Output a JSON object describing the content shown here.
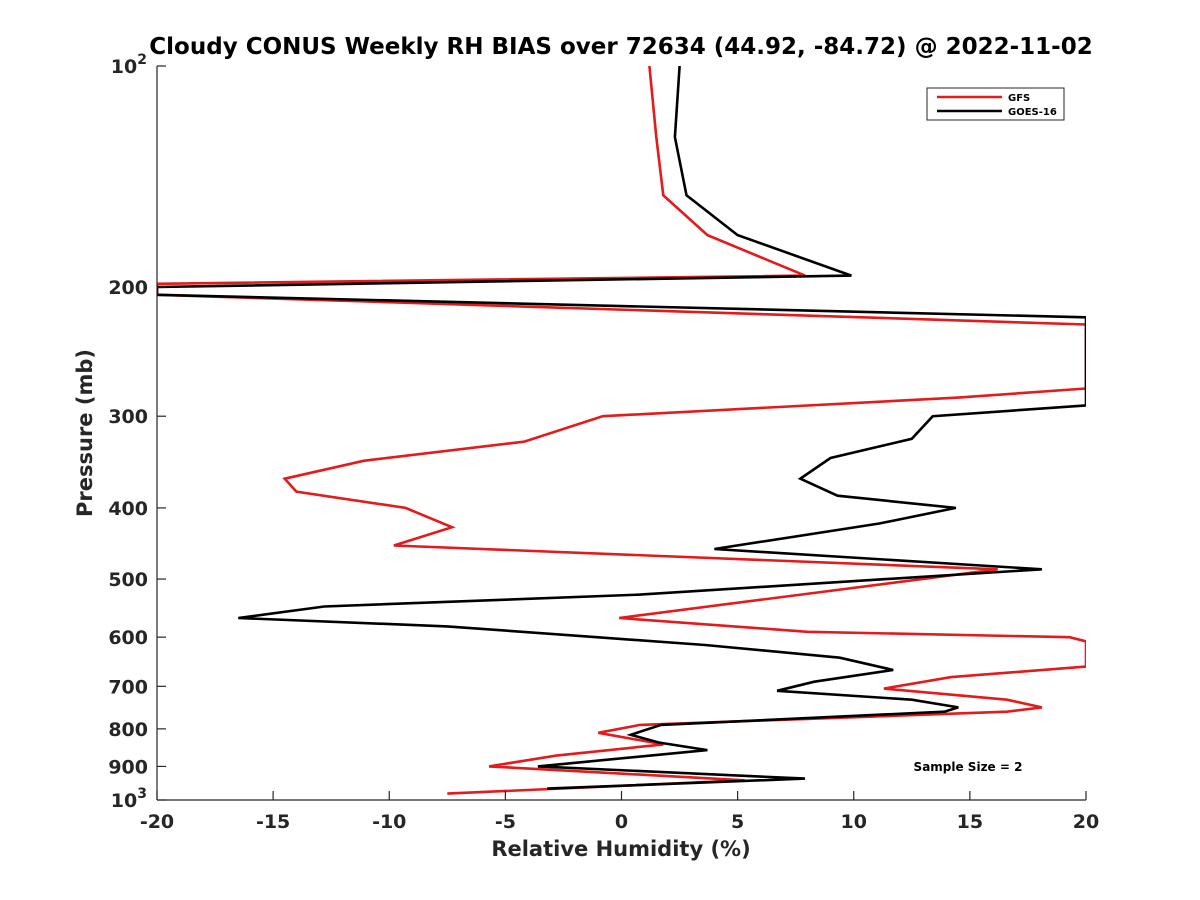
{
  "chart_data": {
    "type": "line",
    "title": "Cloudy CONUS Weekly RH BIAS over 72634 (44.92, -84.72) @ 2022-11-02",
    "xlabel": "Relative Humidity (%)",
    "ylabel": "Pressure (mb)",
    "xlim": [
      -20,
      20
    ],
    "ylim": [
      100,
      1000
    ],
    "yscale": "log",
    "yreversed": true,
    "xticks": [
      "-20",
      "-15",
      "-10",
      "-5",
      "0",
      "5",
      "10",
      "15",
      "20"
    ],
    "yticks": [
      {
        "value": 100,
        "base": "10",
        "exp": "2"
      },
      {
        "value": 200,
        "label": "200"
      },
      {
        "value": 300,
        "label": "300"
      },
      {
        "value": 400,
        "label": "400"
      },
      {
        "value": 500,
        "label": "500"
      },
      {
        "value": 600,
        "label": "600"
      },
      {
        "value": 700,
        "label": "700"
      },
      {
        "value": 800,
        "label": "800"
      },
      {
        "value": 900,
        "label": "900"
      },
      {
        "value": 1000,
        "base": "10",
        "exp": "3"
      }
    ],
    "legend_position": "top-right",
    "grid": false,
    "annotation": "Sample Size = 2",
    "series": [
      {
        "name": "GFS",
        "color": "#e41a1c",
        "points": [
          [
            1.2,
            100
          ],
          [
            1.5,
            125
          ],
          [
            1.8,
            150
          ],
          [
            3.7,
            170
          ],
          [
            7.9,
            193
          ],
          [
            -20,
            198
          ],
          [
            -20,
            205
          ],
          [
            20,
            225
          ],
          [
            20,
            275
          ],
          [
            14.5,
            283
          ],
          [
            -0.8,
            300
          ],
          [
            -4.2,
            325
          ],
          [
            -11.1,
            345
          ],
          [
            -14.5,
            365
          ],
          [
            -14.0,
            380
          ],
          [
            -9.3,
            400
          ],
          [
            -7.3,
            425
          ],
          [
            -9.8,
            450
          ],
          [
            16.2,
            485
          ],
          [
            -0.1,
            565
          ],
          [
            8.0,
            590
          ],
          [
            19.3,
            600
          ],
          [
            20,
            608
          ],
          [
            20,
            658
          ],
          [
            14.2,
            680
          ],
          [
            11.3,
            705
          ],
          [
            16.6,
            730
          ],
          [
            18.1,
            748
          ],
          [
            16.6,
            758
          ],
          [
            0.8,
            790
          ],
          [
            -1.0,
            810
          ],
          [
            1.8,
            840
          ],
          [
            -2.8,
            870
          ],
          [
            -5.7,
            900
          ],
          [
            5.3,
            940
          ],
          [
            -7.5,
            980
          ]
        ]
      },
      {
        "name": "GOES-16",
        "color": "#000000",
        "points": [
          [
            2.5,
            100
          ],
          [
            2.3,
            125
          ],
          [
            2.8,
            150
          ],
          [
            5.0,
            170
          ],
          [
            9.9,
            193
          ],
          [
            -20,
            200
          ],
          [
            -20,
            205
          ],
          [
            20,
            220
          ],
          [
            20,
            290
          ],
          [
            13.4,
            300
          ],
          [
            12.5,
            322
          ],
          [
            9.0,
            342
          ],
          [
            7.7,
            365
          ],
          [
            9.3,
            385
          ],
          [
            14.4,
            400
          ],
          [
            11.1,
            420
          ],
          [
            4.0,
            455
          ],
          [
            18.1,
            485
          ],
          [
            0.8,
            525
          ],
          [
            -12.8,
            545
          ],
          [
            -16.5,
            565
          ],
          [
            -7.5,
            580
          ],
          [
            3.6,
            615
          ],
          [
            9.4,
            640
          ],
          [
            11.7,
            665
          ],
          [
            8.3,
            690
          ],
          [
            6.7,
            710
          ],
          [
            12.5,
            730
          ],
          [
            14.5,
            748
          ],
          [
            13.9,
            758
          ],
          [
            1.7,
            790
          ],
          [
            0.4,
            815
          ],
          [
            1.6,
            835
          ],
          [
            3.7,
            855
          ],
          [
            -3.6,
            900
          ],
          [
            7.9,
            935
          ],
          [
            -3.2,
            965
          ]
        ]
      }
    ]
  }
}
